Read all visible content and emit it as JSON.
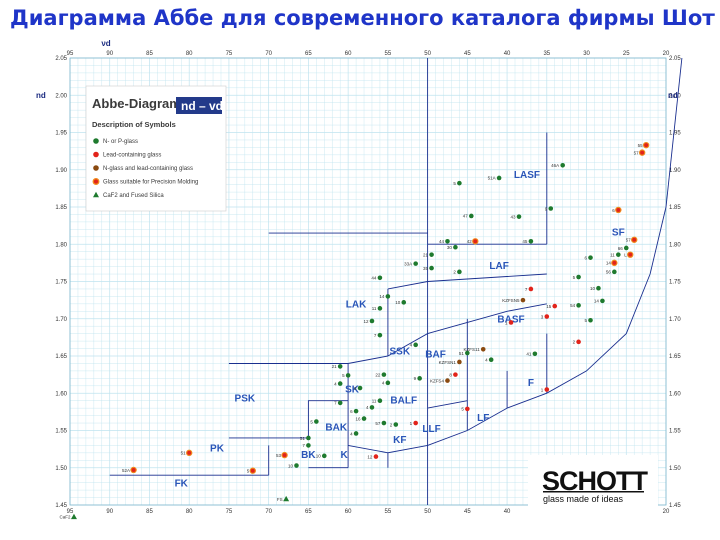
{
  "slide_title": "Диаграмма Аббе для современного каталога фирмы Шотт",
  "colors": {
    "title": "#1f35c8",
    "grid": "#bfe3ef",
    "boundary": "#1a2f8f",
    "n_glass": "#1e7a2e",
    "lead_glass": "#e2231a",
    "n_lead_glass": "#8a4a10",
    "moldable": "#f08a1c",
    "caf2": "#1e7a2e",
    "legend_formula_bg": "#233a8a"
  },
  "legend": {
    "title": "Abbe-Diagram",
    "formula": "nd – vd",
    "subtitle": "Description of Symbols",
    "items": [
      {
        "label": "N- or P-glass",
        "symbol": "circle",
        "color": "#1e7a2e"
      },
      {
        "label": "Lead-containing glass",
        "symbol": "circle",
        "color": "#e2231a"
      },
      {
        "label": "N-glass and lead-containing glass",
        "symbol": "circle",
        "color": "#8a4a10"
      },
      {
        "label": "Glass suitable for Precision Molding",
        "symbol": "ring",
        "color": "#f08a1c"
      },
      {
        "label": "CaF2 and Fused Silica",
        "symbol": "triangle",
        "color": "#1e7a2e"
      }
    ]
  },
  "brand": {
    "name": "SCHOTT",
    "tagline": "glass made of ideas"
  },
  "chart_data": {
    "type": "scatter",
    "title": "Abbe-Diagram",
    "xlabel": "νd",
    "ylabel": "nd",
    "xlim": [
      95,
      20
    ],
    "ylim": [
      1.45,
      2.05
    ],
    "grid": true,
    "legend_position": "top-left",
    "x_ticks": [
      "95",
      "90",
      "85",
      "80",
      "75",
      "70",
      "65",
      "60",
      "55",
      "50",
      "45",
      "40",
      "35",
      "30",
      "25",
      "20"
    ],
    "y_ticks": [
      "1.45",
      "1.50",
      "1.55",
      "1.60",
      "1.65",
      "1.70",
      "1.75",
      "1.80",
      "1.85",
      "1.90",
      "1.95",
      "2.00",
      "2.05"
    ],
    "regions": [
      {
        "label": "LASF",
        "x": 37.5,
        "y": 1.889
      },
      {
        "label": "SF",
        "x": 26,
        "y": 1.812
      },
      {
        "label": "LAF",
        "x": 41,
        "y": 1.767
      },
      {
        "label": "LAK",
        "x": 59,
        "y": 1.715
      },
      {
        "label": "BASF",
        "x": 39.5,
        "y": 1.695
      },
      {
        "label": "SSK",
        "x": 53.5,
        "y": 1.652
      },
      {
        "label": "BAF",
        "x": 49,
        "y": 1.648
      },
      {
        "label": "SK",
        "x": 59.5,
        "y": 1.601
      },
      {
        "label": "PSK",
        "x": 73,
        "y": 1.589
      },
      {
        "label": "BALF",
        "x": 53,
        "y": 1.586
      },
      {
        "label": "F",
        "x": 37,
        "y": 1.61
      },
      {
        "label": "LF",
        "x": 43,
        "y": 1.563
      },
      {
        "label": "BAK",
        "x": 61.5,
        "y": 1.55
      },
      {
        "label": "LLF",
        "x": 49.5,
        "y": 1.548
      },
      {
        "label": "KF",
        "x": 53.5,
        "y": 1.533
      },
      {
        "label": "PK",
        "x": 76.5,
        "y": 1.522
      },
      {
        "label": "BK",
        "x": 65,
        "y": 1.513
      },
      {
        "label": "K",
        "x": 60.5,
        "y": 1.513
      },
      {
        "label": "FK",
        "x": 81,
        "y": 1.475
      }
    ],
    "series": [
      {
        "name": "N- or P-glass",
        "points": [
          {
            "x": 41,
            "y": 1.889,
            "label": "51A"
          },
          {
            "x": 46,
            "y": 1.882,
            "label": "5"
          },
          {
            "x": 33,
            "y": 1.906,
            "label": "46A"
          },
          {
            "x": 34.5,
            "y": 1.848,
            "label": "9"
          },
          {
            "x": 44.5,
            "y": 1.838,
            "label": "47"
          },
          {
            "x": 38.5,
            "y": 1.837,
            "label": "43"
          },
          {
            "x": 47.5,
            "y": 1.804,
            "label": "44"
          },
          {
            "x": 37,
            "y": 1.804,
            "label": "45"
          },
          {
            "x": 46.5,
            "y": 1.796,
            "label": "30"
          },
          {
            "x": 49.5,
            "y": 1.786,
            "label": "21"
          },
          {
            "x": 51.5,
            "y": 1.774,
            "label": "33A"
          },
          {
            "x": 49.5,
            "y": 1.768,
            "label": "35"
          },
          {
            "x": 46,
            "y": 1.763,
            "label": "2"
          },
          {
            "x": 56,
            "y": 1.755,
            "label": "44"
          },
          {
            "x": 55,
            "y": 1.73,
            "label": "14"
          },
          {
            "x": 56,
            "y": 1.714,
            "label": "11"
          },
          {
            "x": 53,
            "y": 1.722,
            "label": "10"
          },
          {
            "x": 57,
            "y": 1.697,
            "label": "12"
          },
          {
            "x": 56,
            "y": 1.678,
            "label": "7"
          },
          {
            "x": 51.5,
            "y": 1.665,
            "label": "4"
          },
          {
            "x": 45,
            "y": 1.654,
            "label": "51"
          },
          {
            "x": 61,
            "y": 1.636,
            "label": "21"
          },
          {
            "x": 55.5,
            "y": 1.625,
            "label": "22"
          },
          {
            "x": 60,
            "y": 1.624,
            "label": "5"
          },
          {
            "x": 51,
            "y": 1.62,
            "label": "9"
          },
          {
            "x": 55,
            "y": 1.614,
            "label": "4"
          },
          {
            "x": 61,
            "y": 1.613,
            "label": "4"
          },
          {
            "x": 58.5,
            "y": 1.607,
            "label": "8"
          },
          {
            "x": 56,
            "y": 1.59,
            "label": "11"
          },
          {
            "x": 61,
            "y": 1.587,
            "label": "7"
          },
          {
            "x": 57,
            "y": 1.581,
            "label": "4"
          },
          {
            "x": 59,
            "y": 1.576,
            "label": "6"
          },
          {
            "x": 58,
            "y": 1.566,
            "label": "16"
          },
          {
            "x": 64,
            "y": 1.562,
            "label": "5"
          },
          {
            "x": 54,
            "y": 1.558,
            "label": "2"
          },
          {
            "x": 59,
            "y": 1.546,
            "label": "4"
          },
          {
            "x": 65,
            "y": 1.54,
            "label": "51"
          },
          {
            "x": 65,
            "y": 1.53,
            "label": "7"
          },
          {
            "x": 63,
            "y": 1.516,
            "label": "10"
          },
          {
            "x": 66.5,
            "y": 1.503,
            "label": "10"
          },
          {
            "x": 55.5,
            "y": 1.56,
            "label": "57"
          },
          {
            "x": 29.5,
            "y": 1.698,
            "label": "5"
          },
          {
            "x": 31,
            "y": 1.718,
            "label": "54"
          },
          {
            "x": 28,
            "y": 1.724,
            "label": "14"
          },
          {
            "x": 28.5,
            "y": 1.741,
            "label": "10"
          },
          {
            "x": 26.5,
            "y": 1.763,
            "label": "56"
          },
          {
            "x": 29.5,
            "y": 1.782,
            "label": "6"
          },
          {
            "x": 26,
            "y": 1.786,
            "label": "11"
          },
          {
            "x": 25,
            "y": 1.795,
            "label": "66"
          },
          {
            "x": 31,
            "y": 1.756,
            "label": "5"
          },
          {
            "x": 36.5,
            "y": 1.653,
            "label": "41"
          },
          {
            "x": 42,
            "y": 1.645,
            "label": "4"
          }
        ]
      },
      {
        "name": "Lead-containing glass",
        "points": [
          {
            "x": 34,
            "y": 1.717,
            "label": "15"
          },
          {
            "x": 31,
            "y": 1.669,
            "label": "2"
          },
          {
            "x": 46.5,
            "y": 1.625,
            "label": "8"
          },
          {
            "x": 35,
            "y": 1.605,
            "label": "1"
          },
          {
            "x": 45,
            "y": 1.579,
            "label": "5"
          },
          {
            "x": 56.5,
            "y": 1.515,
            "label": "12"
          },
          {
            "x": 51.5,
            "y": 1.56,
            "label": "1"
          },
          {
            "x": 39.5,
            "y": 1.695,
            "label": "1"
          },
          {
            "x": 37,
            "y": 1.74,
            "label": "7"
          },
          {
            "x": 35,
            "y": 1.703,
            "label": "3"
          }
        ]
      },
      {
        "name": "N-glass and lead-containing glass",
        "points": [
          {
            "x": 38,
            "y": 1.725,
            "label": "KZFSN5"
          },
          {
            "x": 43,
            "y": 1.659,
            "label": "KZFS11"
          },
          {
            "x": 47.5,
            "y": 1.617,
            "label": "KZFS4"
          },
          {
            "x": 46,
            "y": 1.642,
            "label": "KZFSN1"
          }
        ]
      },
      {
        "name": "Glass suitable for Precision Molding",
        "points": [
          {
            "x": 23,
            "y": 1.923,
            "label": "57"
          },
          {
            "x": 22.5,
            "y": 1.933,
            "label": "55"
          },
          {
            "x": 26,
            "y": 1.846,
            "label": "6"
          },
          {
            "x": 24,
            "y": 1.806,
            "label": "57"
          },
          {
            "x": 26.5,
            "y": 1.775,
            "label": "14"
          },
          {
            "x": 24.5,
            "y": 1.786,
            "label": "L"
          },
          {
            "x": 87,
            "y": 1.497,
            "label": "52A"
          },
          {
            "x": 72,
            "y": 1.496,
            "label": "5"
          },
          {
            "x": 80,
            "y": 1.52,
            "label": "51"
          },
          {
            "x": 68,
            "y": 1.517,
            "label": "53"
          },
          {
            "x": 44,
            "y": 1.804,
            "label": "42"
          }
        ]
      },
      {
        "name": "CaF2 and Fused Silica",
        "points": [
          {
            "x": 94.5,
            "y": 1.434,
            "label": "CaF2"
          },
          {
            "x": 67.8,
            "y": 1.458,
            "label": "FS"
          }
        ]
      }
    ]
  }
}
